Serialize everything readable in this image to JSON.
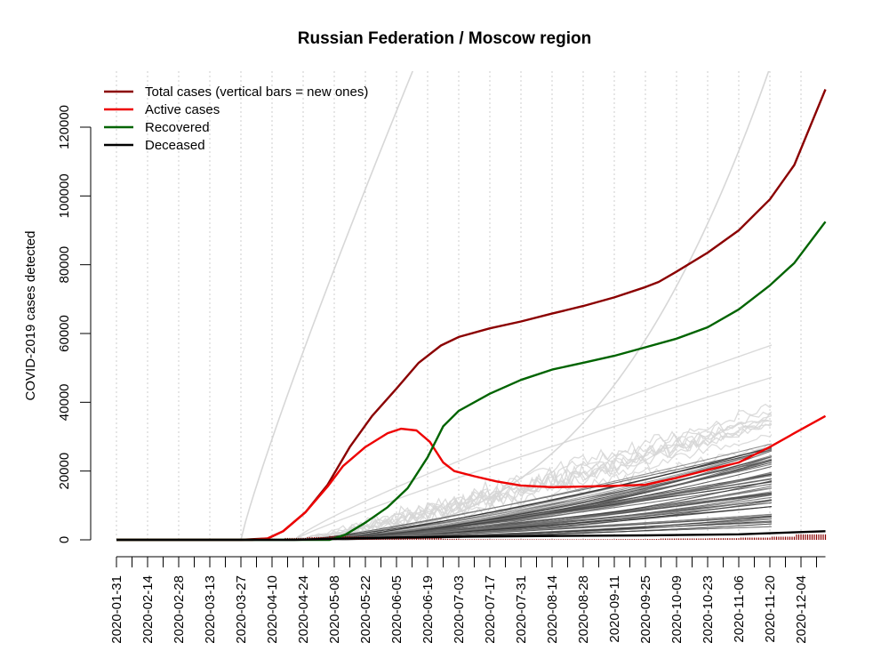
{
  "chart_data": {
    "type": "line",
    "title": "Russian Federation / Moscow region",
    "xlabel": "",
    "ylabel": "COVID-2019 cases detected",
    "ylim": [
      0,
      135000
    ],
    "xlim": [
      "2020-01-31",
      "2020-12-15"
    ],
    "grid": "vertical dotted lines at x ticks",
    "legend_position": "top-left",
    "y_ticks": [
      0,
      20000,
      40000,
      60000,
      80000,
      100000,
      120000
    ],
    "y_tick_labels": [
      "0",
      "20000",
      "40000",
      "60000",
      "80000",
      "100000",
      "120000"
    ],
    "x_tick_labels": [
      "2020-01-31",
      "2020-02-14",
      "2020-02-28",
      "2020-03-13",
      "2020-03-27",
      "2020-04-10",
      "2020-04-24",
      "2020-05-08",
      "2020-05-22",
      "2020-06-05",
      "2020-06-19",
      "2020-07-03",
      "2020-07-17",
      "2020-07-31",
      "2020-08-14",
      "2020-08-28",
      "2020-09-11",
      "2020-09-25",
      "2020-10-09",
      "2020-10-23",
      "2020-11-06",
      "2020-11-20",
      "2020-12-04"
    ],
    "series": [
      {
        "name": "Total cases (vertical bars = new ones)",
        "color": "#8b0000",
        "points": [
          [
            "2020-01-31",
            0
          ],
          [
            "2020-03-27",
            0
          ],
          [
            "2020-04-08",
            400
          ],
          [
            "2020-04-15",
            2500
          ],
          [
            "2020-04-25",
            8000
          ],
          [
            "2020-05-05",
            16000
          ],
          [
            "2020-05-15",
            27000
          ],
          [
            "2020-05-25",
            36000
          ],
          [
            "2020-06-05",
            44000
          ],
          [
            "2020-06-15",
            51500
          ],
          [
            "2020-06-25",
            56500
          ],
          [
            "2020-07-03",
            59000
          ],
          [
            "2020-07-17",
            61500
          ],
          [
            "2020-07-31",
            63500
          ],
          [
            "2020-08-14",
            65800
          ],
          [
            "2020-08-28",
            68000
          ],
          [
            "2020-09-11",
            70500
          ],
          [
            "2020-09-25",
            73500
          ],
          [
            "2020-10-01",
            75000
          ],
          [
            "2020-10-09",
            78000
          ],
          [
            "2020-10-23",
            83500
          ],
          [
            "2020-11-06",
            90000
          ],
          [
            "2020-11-20",
            99000
          ],
          [
            "2020-12-01",
            109000
          ],
          [
            "2020-12-15",
            131000
          ]
        ]
      },
      {
        "name": "Active cases",
        "color": "#ee0000",
        "points": [
          [
            "2020-01-31",
            0
          ],
          [
            "2020-04-01",
            0
          ],
          [
            "2020-04-08",
            400
          ],
          [
            "2020-04-15",
            2500
          ],
          [
            "2020-04-25",
            8000
          ],
          [
            "2020-05-05",
            15500
          ],
          [
            "2020-05-12",
            21500
          ],
          [
            "2020-05-22",
            27000
          ],
          [
            "2020-06-01",
            31000
          ],
          [
            "2020-06-07",
            32300
          ],
          [
            "2020-06-14",
            31800
          ],
          [
            "2020-06-20",
            28500
          ],
          [
            "2020-06-26",
            22500
          ],
          [
            "2020-07-01",
            20000
          ],
          [
            "2020-07-10",
            18500
          ],
          [
            "2020-07-20",
            17000
          ],
          [
            "2020-07-31",
            15800
          ],
          [
            "2020-08-14",
            15300
          ],
          [
            "2020-08-28",
            15500
          ],
          [
            "2020-09-11",
            15700
          ],
          [
            "2020-09-25",
            16000
          ],
          [
            "2020-10-09",
            18000
          ],
          [
            "2020-10-23",
            20300
          ],
          [
            "2020-11-06",
            22500
          ],
          [
            "2020-11-20",
            27000
          ],
          [
            "2020-12-01",
            31000
          ],
          [
            "2020-12-15",
            36000
          ]
        ]
      },
      {
        "name": "Recovered",
        "color": "#006400",
        "points": [
          [
            "2020-01-31",
            0
          ],
          [
            "2020-05-06",
            0
          ],
          [
            "2020-05-13",
            1500
          ],
          [
            "2020-05-22",
            5000
          ],
          [
            "2020-06-01",
            9500
          ],
          [
            "2020-06-10",
            15000
          ],
          [
            "2020-06-19",
            24000
          ],
          [
            "2020-06-26",
            33000
          ],
          [
            "2020-07-03",
            37500
          ],
          [
            "2020-07-17",
            42500
          ],
          [
            "2020-07-31",
            46500
          ],
          [
            "2020-08-14",
            49500
          ],
          [
            "2020-08-28",
            51500
          ],
          [
            "2020-09-11",
            53500
          ],
          [
            "2020-09-25",
            56000
          ],
          [
            "2020-10-09",
            58500
          ],
          [
            "2020-10-23",
            61800
          ],
          [
            "2020-11-06",
            67000
          ],
          [
            "2020-11-20",
            74000
          ],
          [
            "2020-12-01",
            80500
          ],
          [
            "2020-12-15",
            92500
          ]
        ]
      },
      {
        "name": "Deceased",
        "color": "#000000",
        "points": [
          [
            "2020-01-31",
            0
          ],
          [
            "2020-04-20",
            0
          ],
          [
            "2020-05-08",
            300
          ],
          [
            "2020-06-05",
            700
          ],
          [
            "2020-07-03",
            900
          ],
          [
            "2020-08-14",
            1100
          ],
          [
            "2020-09-25",
            1300
          ],
          [
            "2020-11-06",
            1600
          ],
          [
            "2020-12-15",
            2500
          ]
        ]
      }
    ]
  }
}
